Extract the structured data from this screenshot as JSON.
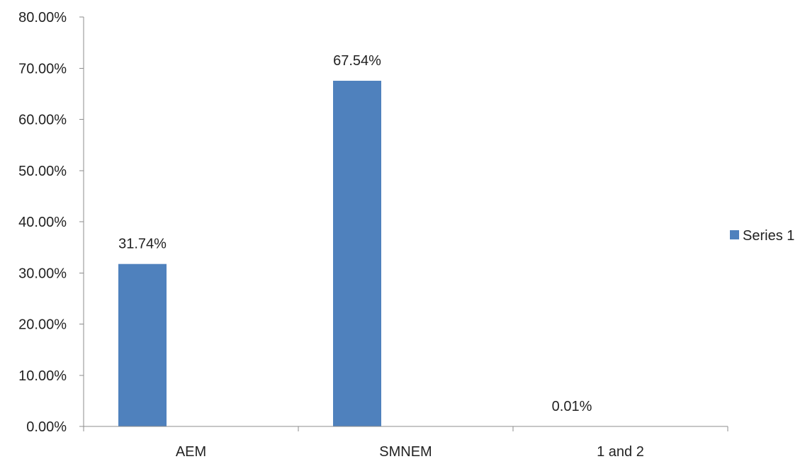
{
  "colors": {
    "series": "#4f81bd",
    "axis": "#8c8c8c",
    "text": "#222222",
    "background": "#ffffff"
  },
  "chart_data": {
    "type": "bar",
    "title": "",
    "xlabel": "",
    "ylabel": "",
    "categories": [
      "AEM",
      "SMNEM",
      "1 and 2"
    ],
    "series": [
      {
        "name": "Series 1",
        "values": [
          31.74,
          67.54,
          0.01
        ],
        "data_labels": [
          "31.74%",
          "67.54%",
          "0.01%"
        ]
      }
    ],
    "ylim": [
      0,
      80
    ],
    "yticks": [
      0,
      10,
      20,
      30,
      40,
      50,
      60,
      70,
      80
    ],
    "ytick_labels": [
      "0.00%",
      "10.00%",
      "20.00%",
      "30.00%",
      "40.00%",
      "50.00%",
      "60.00%",
      "70.00%",
      "80.00%"
    ],
    "grid": false,
    "legend": {
      "position": "right",
      "entries": [
        "Series 1"
      ]
    }
  }
}
